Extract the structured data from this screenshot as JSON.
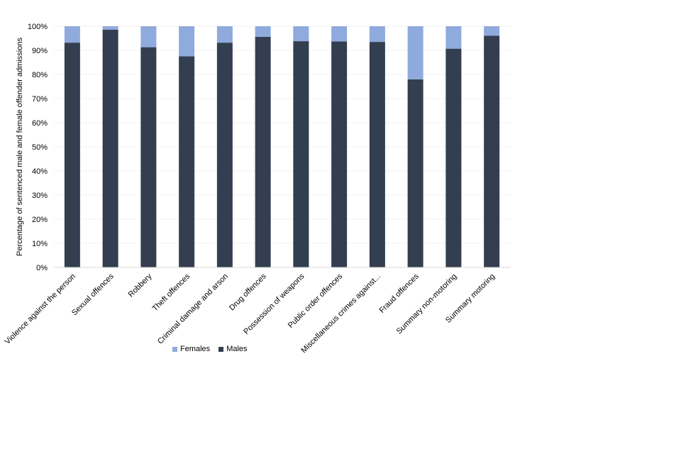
{
  "chart_data": {
    "type": "bar",
    "stacked": true,
    "ylabel": "Percentage of sentenced male and female offender  admissions",
    "xlabel": "",
    "ylim": [
      0,
      100
    ],
    "ytick_labels": [
      "0%",
      "10%",
      "20%",
      "30%",
      "40%",
      "50%",
      "60%",
      "70%",
      "80%",
      "90%",
      "100%"
    ],
    "categories": [
      "Violence against the person",
      "Sexual offences",
      "Robbery",
      "Theft  offences",
      "Criminal  damage and arson",
      "Drug offences",
      "Possession of weapons",
      "Public order offences",
      "Miscellaneous crimes against...",
      "Fraud  offences",
      "Summary non-motoring",
      "Summary motoring"
    ],
    "series": [
      {
        "name": "Males",
        "color": "#333f50",
        "values": [
          93.2,
          98.6,
          91.3,
          87.5,
          93.2,
          95.6,
          93.8,
          93.7,
          93.5,
          78.0,
          90.7,
          96.1
        ]
      },
      {
        "name": "Females",
        "color": "#8faadc",
        "values": [
          6.8,
          1.4,
          8.7,
          12.5,
          6.8,
          4.4,
          6.2,
          6.3,
          6.5,
          22.0,
          9.3,
          3.9
        ]
      }
    ],
    "legend": {
      "position": "bottom",
      "order": [
        "Females",
        "Males"
      ]
    },
    "grid": true
  }
}
